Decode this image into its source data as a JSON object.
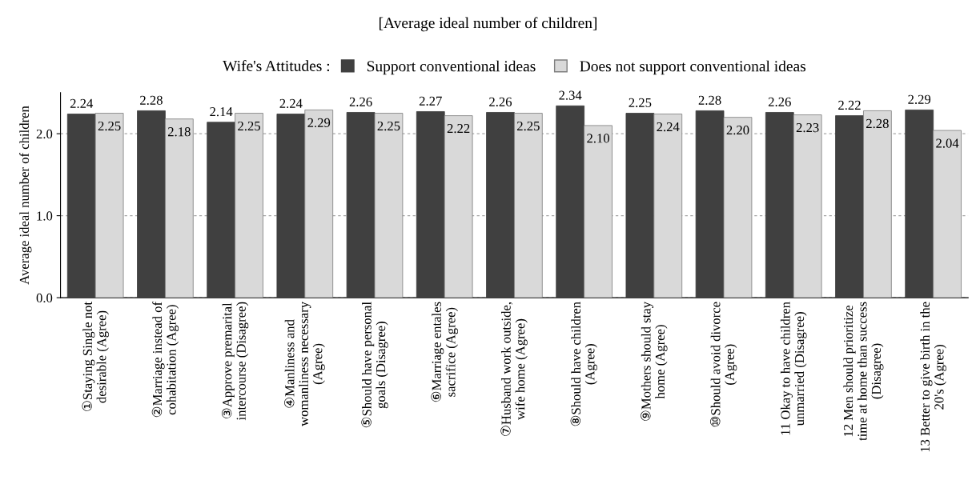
{
  "chart_data": {
    "type": "bar",
    "title": "[Average ideal number of children]",
    "ylabel": "Average ideal number of children",
    "legend_title": "Wife's Attitudes :",
    "categories": [
      "①Staying Single not\ndesirable (Agree)",
      "②Marriage instead of\ncohabitation (Agree)",
      "③Approve premarital\nintercourse (Disagree)",
      "④Manliness and\nwomanliness necessary\n(Agree)",
      "⑤Should have personal\ngoals (Disagree)",
      "⑥Marriage entales\nsacrifice (Agree)",
      "⑦Husband work outside,\nwife home (Agree)",
      "⑧Should have children\n(Agree)",
      "⑨Mothers should stay\nhome (Agree)",
      "⑩Should avoid divorce\n(Agree)",
      "11 Okay to have children\nunmarried (Disagree)",
      "12 Men should prioritize\ntime at home than success\n(Disagree)",
      "13 Better to give birth in the\n20's (Agree)"
    ],
    "series": [
      {
        "name": "Support conventional ideas",
        "color": "#404040",
        "values": [
          2.24,
          2.28,
          2.14,
          2.24,
          2.26,
          2.27,
          2.26,
          2.34,
          2.25,
          2.28,
          2.26,
          2.22,
          2.29
        ],
        "value_labels": [
          "2.24",
          "2.28",
          "2.14",
          "2.24",
          "2.26",
          "2.27",
          "2.26",
          "2.34",
          "2.25",
          "2.28",
          "2.26",
          "2.22",
          "2.29"
        ]
      },
      {
        "name": "Does not support conventional ideas",
        "color": "#d9d9d9",
        "values": [
          2.25,
          2.18,
          2.25,
          2.29,
          2.25,
          2.22,
          2.25,
          2.1,
          2.24,
          2.2,
          2.23,
          2.28,
          2.04
        ],
        "value_labels": [
          "2.25",
          "2.18",
          "2.25",
          "2.29",
          "2.25",
          "2.22",
          "2.25",
          "2.10",
          "2.24",
          "2.20",
          "2.23",
          "2.28",
          "2.04"
        ]
      }
    ],
    "ylim": [
      0,
      2.5
    ],
    "yticks": [
      {
        "value": 0,
        "label": "0.0"
      },
      {
        "value": 1,
        "label": "1.0"
      },
      {
        "value": 2,
        "label": "2.0"
      }
    ],
    "grid": "y",
    "legend": "top"
  }
}
